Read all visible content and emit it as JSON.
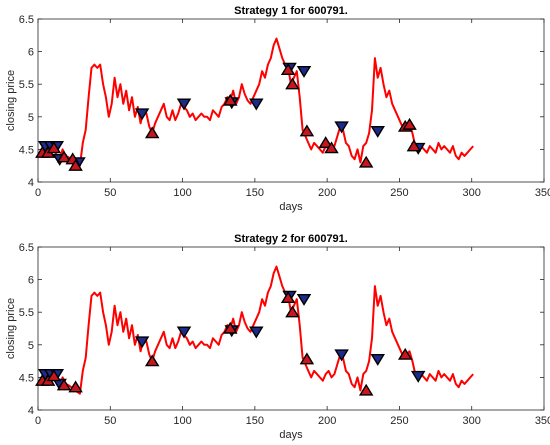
{
  "colors": {
    "line": "#ff0000",
    "sell": "#1c2a8a",
    "buy": "#c8161e",
    "marker_edge": "#000000"
  },
  "chart_data": [
    {
      "type": "line",
      "title": "Strategy 1 for 600791.",
      "xlabel": "days",
      "ylabel": "closing price",
      "xlim": [
        0,
        350
      ],
      "ylim": [
        4,
        6.5
      ],
      "xticks": [
        0,
        50,
        100,
        150,
        200,
        250,
        300,
        350
      ],
      "yticks": [
        4,
        4.5,
        5,
        5.5,
        6,
        6.5
      ],
      "grid": false,
      "series": [
        {
          "x": [
            1,
            3,
            5,
            7,
            9,
            11,
            13,
            15,
            17,
            19,
            21,
            23,
            25,
            27,
            29,
            31,
            33,
            35,
            37,
            39,
            41,
            43,
            45,
            47,
            49,
            51,
            53,
            55,
            57,
            59,
            61,
            63,
            65,
            67,
            69,
            71,
            73,
            75,
            77,
            79,
            81,
            83,
            85,
            87,
            89,
            91,
            93,
            95,
            97,
            99,
            101,
            103,
            105,
            107,
            109,
            111,
            113,
            115,
            117,
            119,
            121,
            123,
            125,
            127,
            129,
            131,
            133,
            135,
            137,
            139,
            141,
            143,
            145,
            147,
            149,
            151,
            153,
            155,
            157,
            159,
            161,
            163,
            165,
            167,
            169,
            171,
            173,
            175,
            177,
            179,
            181,
            183,
            185,
            187,
            189,
            191,
            193,
            195,
            197,
            199,
            201,
            203,
            205,
            207,
            209,
            211,
            213,
            215,
            217,
            219,
            221,
            223,
            225,
            227,
            229,
            231,
            233,
            235,
            237,
            239,
            241,
            243,
            245,
            247,
            249,
            251,
            253,
            255,
            257,
            259,
            261,
            263,
            265,
            267,
            269,
            271,
            273,
            275,
            277,
            279,
            281,
            283,
            285,
            287,
            289,
            291,
            293,
            295,
            297,
            299,
            301
          ],
          "values": [
            4.4,
            4.45,
            4.5,
            4.48,
            4.55,
            4.5,
            4.4,
            4.35,
            4.5,
            4.4,
            4.38,
            4.35,
            4.3,
            4.28,
            4.25,
            4.6,
            4.8,
            5.3,
            5.75,
            5.8,
            5.75,
            5.8,
            5.5,
            5.3,
            5.0,
            5.2,
            5.6,
            5.3,
            5.5,
            5.2,
            5.4,
            5.1,
            5.3,
            5.0,
            5.15,
            4.9,
            5.1,
            5.05,
            4.85,
            4.75,
            4.9,
            5.0,
            5.1,
            5.2,
            5.0,
            4.95,
            5.1,
            4.95,
            5.05,
            5.2,
            5.15,
            5.1,
            5.0,
            5.05,
            4.95,
            5.0,
            5.05,
            5.0,
            5.0,
            4.95,
            5.1,
            5.05,
            5.0,
            5.15,
            5.2,
            5.3,
            5.25,
            5.4,
            5.2,
            5.3,
            5.5,
            5.35,
            5.25,
            5.2,
            5.3,
            5.4,
            5.5,
            5.7,
            5.6,
            5.8,
            5.9,
            6.1,
            6.2,
            6.05,
            5.9,
            5.8,
            5.75,
            5.5,
            5.6,
            5.7,
            5.3,
            4.8,
            4.7,
            4.6,
            4.5,
            4.6,
            4.55,
            4.5,
            4.45,
            4.55,
            4.6,
            4.5,
            4.55,
            4.7,
            4.85,
            4.8,
            4.6,
            4.55,
            4.4,
            4.35,
            4.5,
            4.3,
            4.55,
            4.6,
            4.75,
            5.1,
            5.9,
            5.6,
            5.75,
            5.5,
            5.3,
            5.4,
            5.2,
            5.1,
            5.0,
            4.9,
            4.8,
            4.85,
            4.9,
            4.75,
            4.55,
            4.5,
            4.55,
            4.5,
            4.45,
            4.55,
            4.5,
            4.45,
            4.6,
            4.5,
            4.55,
            4.5,
            4.45,
            4.55,
            4.4,
            4.35,
            4.45,
            4.4,
            4.45,
            4.5,
            4.55
          ]
        }
      ],
      "markers": {
        "sell": {
          "x": [
            5,
            9,
            13,
            15,
            28,
            72,
            101,
            134,
            151,
            174,
            184,
            210,
            235,
            263
          ],
          "y": [
            4.55,
            4.55,
            4.55,
            4.35,
            4.3,
            5.05,
            5.2,
            5.22,
            5.2,
            5.75,
            5.7,
            4.85,
            4.78,
            4.52
          ]
        },
        "buy": {
          "x": [
            3,
            7,
            11,
            18,
            24,
            26,
            79,
            133,
            173,
            176,
            186,
            199,
            203,
            227,
            254,
            257,
            260
          ],
          "y": [
            4.45,
            4.45,
            4.52,
            4.38,
            4.35,
            4.25,
            4.75,
            5.25,
            5.72,
            5.5,
            4.78,
            4.6,
            4.52,
            4.3,
            4.85,
            4.88,
            4.55
          ]
        }
      }
    },
    {
      "type": "line",
      "title": "Strategy 2 for 600791.",
      "xlabel": "days",
      "ylabel": "closing price",
      "xlim": [
        0,
        350
      ],
      "ylim": [
        4,
        6.5
      ],
      "xticks": [
        0,
        50,
        100,
        150,
        200,
        250,
        300,
        350
      ],
      "yticks": [
        4,
        4.5,
        5,
        5.5,
        6,
        6.5
      ],
      "grid": false,
      "series": [
        {
          "x": [
            1,
            3,
            5,
            7,
            9,
            11,
            13,
            15,
            17,
            19,
            21,
            23,
            25,
            27,
            29,
            31,
            33,
            35,
            37,
            39,
            41,
            43,
            45,
            47,
            49,
            51,
            53,
            55,
            57,
            59,
            61,
            63,
            65,
            67,
            69,
            71,
            73,
            75,
            77,
            79,
            81,
            83,
            85,
            87,
            89,
            91,
            93,
            95,
            97,
            99,
            101,
            103,
            105,
            107,
            109,
            111,
            113,
            115,
            117,
            119,
            121,
            123,
            125,
            127,
            129,
            131,
            133,
            135,
            137,
            139,
            141,
            143,
            145,
            147,
            149,
            151,
            153,
            155,
            157,
            159,
            161,
            163,
            165,
            167,
            169,
            171,
            173,
            175,
            177,
            179,
            181,
            183,
            185,
            187,
            189,
            191,
            193,
            195,
            197,
            199,
            201,
            203,
            205,
            207,
            209,
            211,
            213,
            215,
            217,
            219,
            221,
            223,
            225,
            227,
            229,
            231,
            233,
            235,
            237,
            239,
            241,
            243,
            245,
            247,
            249,
            251,
            253,
            255,
            257,
            259,
            261,
            263,
            265,
            267,
            269,
            271,
            273,
            275,
            277,
            279,
            281,
            283,
            285,
            287,
            289,
            291,
            293,
            295,
            297,
            299,
            301
          ],
          "values": [
            4.4,
            4.45,
            4.5,
            4.48,
            4.55,
            4.5,
            4.4,
            4.35,
            4.5,
            4.4,
            4.38,
            4.35,
            4.3,
            4.28,
            4.25,
            4.6,
            4.8,
            5.3,
            5.75,
            5.8,
            5.75,
            5.8,
            5.5,
            5.3,
            5.0,
            5.2,
            5.6,
            5.3,
            5.5,
            5.2,
            5.4,
            5.1,
            5.3,
            5.0,
            5.15,
            4.9,
            5.1,
            5.05,
            4.85,
            4.75,
            4.9,
            5.0,
            5.1,
            5.2,
            5.0,
            4.95,
            5.1,
            4.95,
            5.05,
            5.2,
            5.15,
            5.1,
            5.0,
            5.05,
            4.95,
            5.0,
            5.05,
            5.0,
            5.0,
            4.95,
            5.1,
            5.05,
            5.0,
            5.15,
            5.2,
            5.3,
            5.25,
            5.4,
            5.2,
            5.3,
            5.5,
            5.35,
            5.25,
            5.2,
            5.3,
            5.4,
            5.5,
            5.7,
            5.6,
            5.8,
            5.9,
            6.1,
            6.2,
            6.05,
            5.9,
            5.8,
            5.75,
            5.5,
            5.6,
            5.7,
            5.3,
            4.8,
            4.7,
            4.6,
            4.5,
            4.6,
            4.55,
            4.5,
            4.45,
            4.55,
            4.6,
            4.5,
            4.55,
            4.7,
            4.85,
            4.8,
            4.6,
            4.55,
            4.4,
            4.35,
            4.5,
            4.3,
            4.55,
            4.6,
            4.75,
            5.1,
            5.9,
            5.6,
            5.75,
            5.5,
            5.3,
            5.4,
            5.2,
            5.1,
            5.0,
            4.9,
            4.8,
            4.85,
            4.9,
            4.75,
            4.55,
            4.5,
            4.55,
            4.5,
            4.45,
            4.55,
            4.5,
            4.45,
            4.6,
            4.5,
            4.55,
            4.5,
            4.45,
            4.55,
            4.4,
            4.35,
            4.45,
            4.4,
            4.45,
            4.5,
            4.55
          ]
        }
      ],
      "markers": {
        "sell": {
          "x": [
            5,
            9,
            13,
            15,
            72,
            101,
            134,
            151,
            174,
            184,
            210,
            235,
            263
          ],
          "y": [
            4.55,
            4.55,
            4.55,
            4.4,
            5.05,
            5.2,
            5.22,
            5.2,
            5.75,
            5.7,
            4.85,
            4.78,
            4.52
          ]
        },
        "buy": {
          "x": [
            3,
            7,
            11,
            18,
            26,
            79,
            133,
            173,
            176,
            186,
            227,
            254
          ],
          "y": [
            4.45,
            4.45,
            4.52,
            4.38,
            4.35,
            4.75,
            5.25,
            5.72,
            5.5,
            4.78,
            4.3,
            4.85
          ]
        }
      }
    }
  ]
}
